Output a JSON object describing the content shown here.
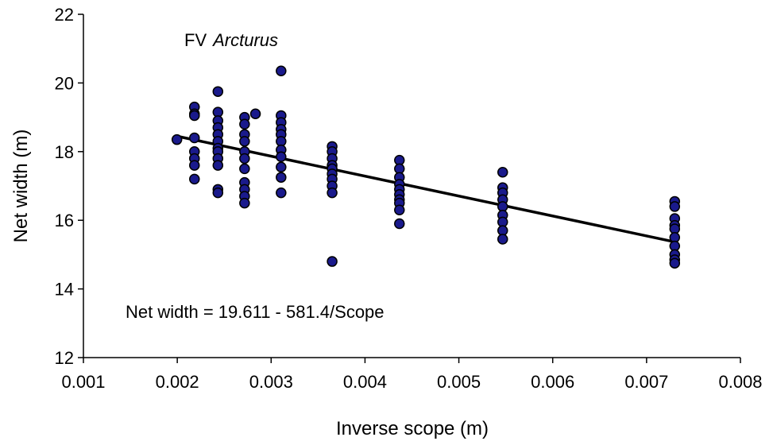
{
  "chart_data": {
    "type": "scatter",
    "title": "",
    "annotation_vessel_prefix": "FV",
    "annotation_vessel_name": "Arcturus",
    "equation": "Net width = 19.611 - 581.4/Scope",
    "xlabel": "Inverse scope (m)",
    "ylabel": "Net width (m)",
    "xlim": [
      0.001,
      0.008
    ],
    "ylim": [
      12,
      22
    ],
    "x_ticks": [
      "0.001",
      "0.002",
      "0.003",
      "0.004",
      "0.005",
      "0.006",
      "0.007",
      "0.008"
    ],
    "y_ticks": [
      "12",
      "14",
      "16",
      "18",
      "20",
      "22"
    ],
    "grid": false,
    "marker_color": "#1a1a8c",
    "line_color": "#000000",
    "series": [
      {
        "type": "scatter",
        "points": [
          [
            0.001996,
            18.35
          ],
          [
            0.002183,
            19.3
          ],
          [
            0.002183,
            19.1
          ],
          [
            0.002183,
            19.05
          ],
          [
            0.002183,
            18.4
          ],
          [
            0.002183,
            18.0
          ],
          [
            0.002183,
            17.8
          ],
          [
            0.002183,
            17.6
          ],
          [
            0.002183,
            17.2
          ],
          [
            0.002433,
            19.75
          ],
          [
            0.002433,
            19.15
          ],
          [
            0.002433,
            18.9
          ],
          [
            0.002433,
            18.7
          ],
          [
            0.002433,
            18.5
          ],
          [
            0.002433,
            18.3
          ],
          [
            0.002433,
            18.1
          ],
          [
            0.002433,
            18.0
          ],
          [
            0.002433,
            17.8
          ],
          [
            0.002433,
            17.6
          ],
          [
            0.002433,
            16.9
          ],
          [
            0.002433,
            16.8
          ],
          [
            0.002717,
            19.0
          ],
          [
            0.002717,
            18.8
          ],
          [
            0.002717,
            18.5
          ],
          [
            0.002717,
            18.3
          ],
          [
            0.002717,
            18.0
          ],
          [
            0.002717,
            17.8
          ],
          [
            0.002717,
            17.5
          ],
          [
            0.002717,
            17.1
          ],
          [
            0.002717,
            16.9
          ],
          [
            0.002717,
            16.7
          ],
          [
            0.002717,
            16.5
          ],
          [
            0.002833,
            19.1
          ],
          [
            0.003106,
            20.35
          ],
          [
            0.003106,
            19.05
          ],
          [
            0.003106,
            18.85
          ],
          [
            0.003106,
            18.65
          ],
          [
            0.003106,
            18.5
          ],
          [
            0.003106,
            18.3
          ],
          [
            0.003106,
            18.05
          ],
          [
            0.003106,
            17.85
          ],
          [
            0.003106,
            17.55
          ],
          [
            0.003106,
            17.25
          ],
          [
            0.003106,
            16.8
          ],
          [
            0.00365,
            18.15
          ],
          [
            0.00365,
            18.0
          ],
          [
            0.00365,
            17.8
          ],
          [
            0.00365,
            17.6
          ],
          [
            0.00365,
            17.5
          ],
          [
            0.00365,
            17.35
          ],
          [
            0.00365,
            17.2
          ],
          [
            0.00365,
            17.0
          ],
          [
            0.00365,
            16.8
          ],
          [
            0.00365,
            14.8
          ],
          [
            0.004367,
            17.75
          ],
          [
            0.004367,
            17.5
          ],
          [
            0.004367,
            17.25
          ],
          [
            0.004367,
            17.05
          ],
          [
            0.004367,
            16.9
          ],
          [
            0.004367,
            16.75
          ],
          [
            0.004367,
            16.6
          ],
          [
            0.004367,
            16.5
          ],
          [
            0.004367,
            16.3
          ],
          [
            0.004367,
            15.9
          ],
          [
            0.005467,
            17.4
          ],
          [
            0.005467,
            16.95
          ],
          [
            0.005467,
            16.8
          ],
          [
            0.005467,
            16.6
          ],
          [
            0.005467,
            16.4
          ],
          [
            0.005467,
            16.15
          ],
          [
            0.005467,
            15.95
          ],
          [
            0.005467,
            15.7
          ],
          [
            0.005467,
            15.45
          ],
          [
            0.0073,
            16.55
          ],
          [
            0.0073,
            16.4
          ],
          [
            0.0073,
            16.05
          ],
          [
            0.0073,
            15.85
          ],
          [
            0.0073,
            15.75
          ],
          [
            0.0073,
            15.5
          ],
          [
            0.0073,
            15.25
          ],
          [
            0.0073,
            15.0
          ],
          [
            0.0073,
            14.85
          ],
          [
            0.0073,
            14.75
          ]
        ]
      },
      {
        "type": "line",
        "points": [
          [
            0.001996,
            18.45
          ],
          [
            0.0073,
            15.37
          ]
        ]
      }
    ]
  }
}
